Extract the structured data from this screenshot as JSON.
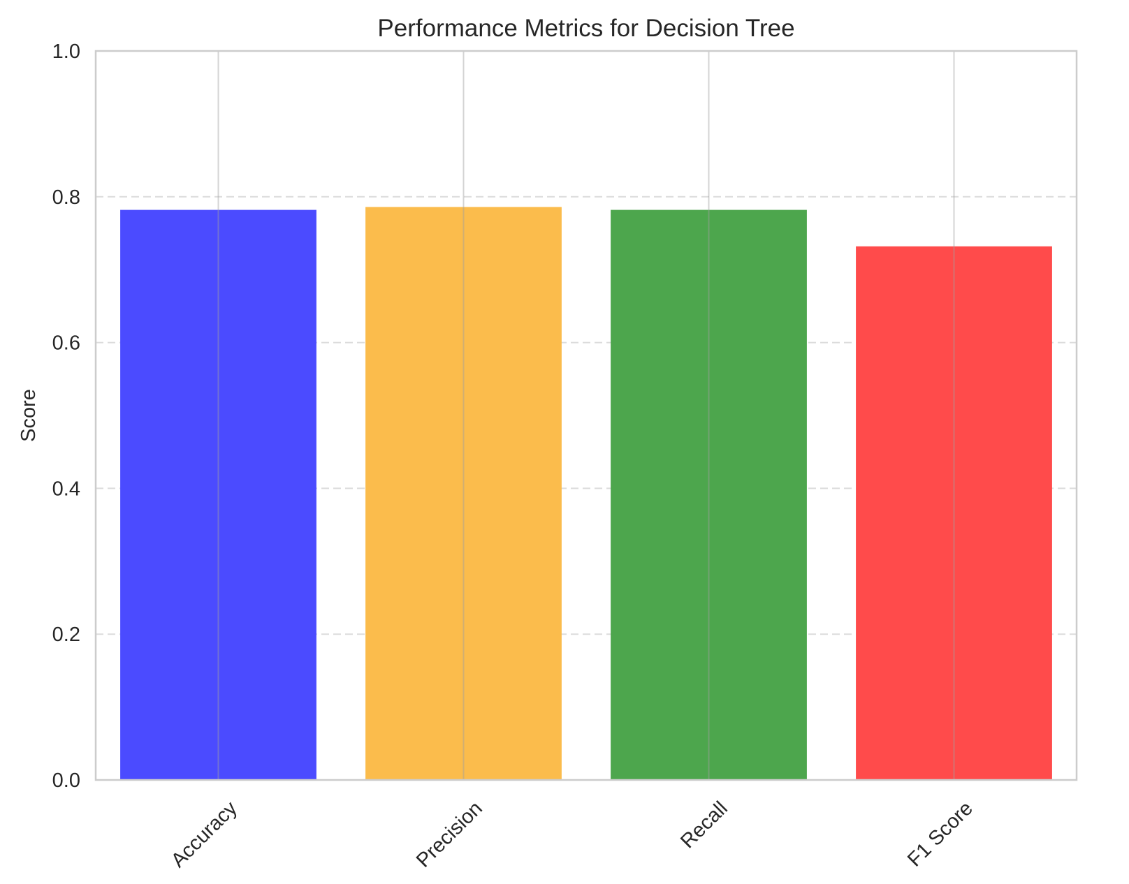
{
  "chart_data": {
    "type": "bar",
    "title": "Performance Metrics for Decision Tree",
    "xlabel": "",
    "ylabel": "Score",
    "categories": [
      "Accuracy",
      "Precision",
      "Recall",
      "F1 Score"
    ],
    "values": [
      0.782,
      0.786,
      0.782,
      0.732
    ],
    "colors": [
      "#4b4bff",
      "#fbbc4c",
      "#4da64d",
      "#ff4b4b"
    ],
    "ylim": [
      0,
      1.0
    ],
    "yticks": [
      "0.0",
      "0.2",
      "0.4",
      "0.6",
      "0.8",
      "1.0"
    ],
    "ytick_values": [
      0,
      0.2,
      0.4,
      0.6,
      0.8,
      1.0
    ],
    "grid": {
      "y": "dashed",
      "x": "solid"
    },
    "xtick_rotation_deg": 45
  }
}
